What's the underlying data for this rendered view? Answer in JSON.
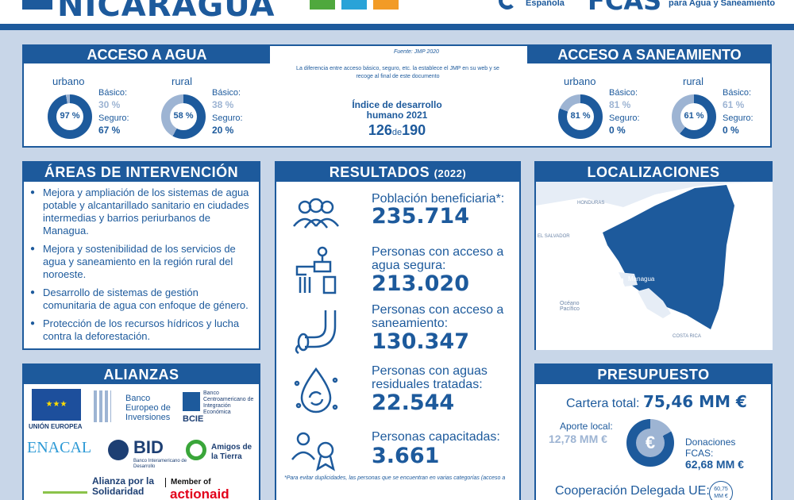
{
  "header": {
    "title": "NICARAGUA",
    "espanola": "Española",
    "fcas": "FCAS",
    "fcas_sub": "para Agua y Saneamiento"
  },
  "top": {
    "agua_title": "ACCESO A AGUA",
    "san_title": "ACCESO A SANEAMIENTO",
    "fuente": "Fuente: JMP 2020",
    "note": "La diferencia entre acceso básico, seguro, etc. la establece el JMP en su web y se recoge al final de este documento",
    "idh_title": "Índice de desarrollo humano 2021",
    "idh_rank": "126",
    "idh_de": "de",
    "idh_total": "190",
    "basico_lbl": "Básico:",
    "seguro_lbl": "Seguro:",
    "agua": [
      {
        "label": "urbano",
        "pct": "97 %",
        "value": 97,
        "basico": "30 %",
        "seguro": "67 %"
      },
      {
        "label": "rural",
        "pct": "58 %",
        "value": 58,
        "basico": "38 %",
        "seguro": "20 %"
      }
    ],
    "san": [
      {
        "label": "urbano",
        "pct": "81 %",
        "value": 81,
        "basico": "81 %",
        "seguro": "0 %"
      },
      {
        "label": "rural",
        "pct": "61 %",
        "value": 61,
        "basico": "61 %",
        "seguro": "0 %"
      }
    ]
  },
  "areas": {
    "title": "ÁREAS DE INTERVENCIÓN",
    "items": [
      "Mejora y ampliación de los sistemas de agua potable y alcantarillado sanitario en ciudades intermedias y barrios periurbanos de Managua.",
      "Mejora y sostenibilidad de los servicios de agua y saneamiento en la región rural del noroeste.",
      "Desarrollo de sistemas de gestión comunitaria de agua con enfoque de género.",
      "Protección de los recursos hídricos y lucha contra la deforestación."
    ]
  },
  "results": {
    "title": "RESULTADOS",
    "year": "(2022)",
    "items": [
      {
        "label": "Población beneficiaria*:",
        "value": "235.714",
        "icon": "people-icon"
      },
      {
        "label": "Personas con acceso a agua segura:",
        "value": "213.020",
        "icon": "tap-icon"
      },
      {
        "label": "Personas con acceso a saneamiento:",
        "value": "130.347",
        "icon": "pipe-icon"
      },
      {
        "label": "Personas con aguas residuales tratadas:",
        "value": "22.544",
        "icon": "water-drop-icon"
      },
      {
        "label": "Personas capacitadas:",
        "value": "3.661",
        "icon": "training-icon"
      }
    ],
    "footnote": "*Para evitar duplicidades, las personas que se encuentran en varias categorías (acceso a"
  },
  "map": {
    "title": "LOCALIZACIONES",
    "honduras": "HONDURAS",
    "salvador": "EL SALVADOR",
    "oceano": "Océano Pacífico",
    "costa_rica": "COSTA RICA",
    "managua": "Managua"
  },
  "alianzas": {
    "title": "ALIANZAS",
    "ue": "UNIÓN EUROPEA",
    "bei": "Banco Europeo de Inversiones",
    "bcie_name": "Banco Centroamericano de Integración Económica",
    "bcie": "BCIE",
    "enacal": "ENACAL",
    "bid": "BID",
    "bid_sub": "Banco Interamericano de Desarrollo",
    "amigos": "Amigos de la Tierra",
    "alianza": "Alianza por la Solidaridad",
    "member_of": "Member of",
    "actionaid": "actionaid"
  },
  "presupuesto": {
    "title": "PRESUPUESTO",
    "cartera_lbl": "Cartera total:",
    "cartera_val": "75,46 MM €",
    "aporte_lbl": "Aporte local:",
    "aporte_val": "12,78 MM €",
    "donaciones_lbl": "Donaciones FCAS:",
    "donaciones_val": "62,68 MM €",
    "ue_lbl": "Cooperación Delegada UE:",
    "ue_val": "60,75 MM €",
    "euro": "€",
    "local_fraction": 0.17
  },
  "colors": {
    "primary": "#1d5a9c",
    "light": "#9db4d3",
    "bg": "#c8d6e8"
  }
}
